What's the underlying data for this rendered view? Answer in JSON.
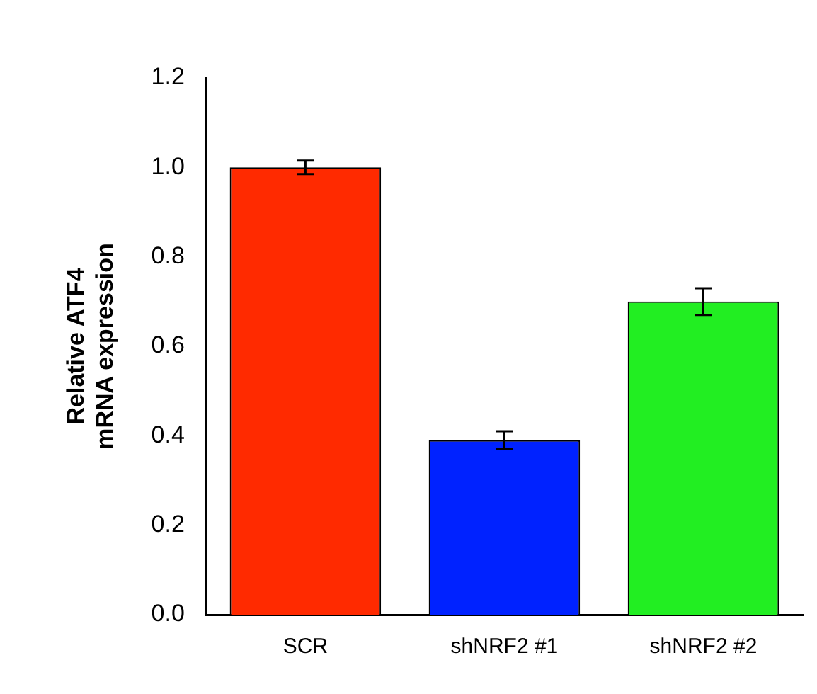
{
  "chart_data": {
    "type": "bar",
    "ylabel": "Relative ATF4 mRNA expression",
    "categories": [
      "SCR",
      "shNRF2 #1",
      "shNRF2 #2"
    ],
    "values": [
      1.0,
      0.39,
      0.7
    ],
    "colors": [
      "#ff2a00",
      "#0022ff",
      "#22ee22"
    ],
    "errors": [
      0.015,
      0.02,
      0.03
    ],
    "ylim": [
      0,
      1.2
    ],
    "yticks": [
      {
        "value": 0,
        "label": "0.0"
      },
      0.2,
      0.4,
      0.6,
      0.8,
      {
        "value": 1,
        "label": "1.0"
      },
      1.2
    ],
    "grid": false,
    "legend": false
  }
}
